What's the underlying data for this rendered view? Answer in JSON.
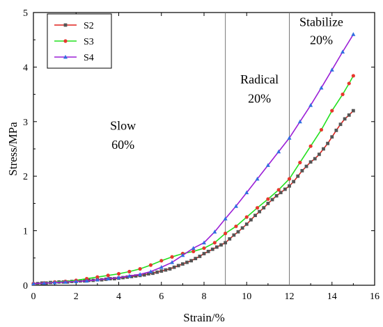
{
  "chart_data": {
    "type": "line",
    "title": "",
    "xlabel": "Strain/%",
    "ylabel": "Stress/MPa",
    "xlim": [
      0,
      16
    ],
    "ylim": [
      0,
      5
    ],
    "x_ticks": [
      0,
      2,
      4,
      6,
      8,
      10,
      12,
      14,
      16
    ],
    "y_ticks": [
      0,
      1,
      2,
      3,
      4,
      5
    ],
    "grid": false,
    "legend_position": "top-left",
    "vertical_lines": [
      9,
      12
    ],
    "annotations": [
      {
        "line1": "Slow",
        "line2": "60%",
        "x": 4.2,
        "y": 2.85,
        "y2": 2.5
      },
      {
        "line1": "Radical",
        "line2": "20%",
        "x": 10.6,
        "y": 3.7,
        "y2": 3.35
      },
      {
        "line1": "Stabilize",
        "line2": "20%",
        "x": 13.5,
        "y": 4.75,
        "y2": 4.42
      }
    ],
    "series": [
      {
        "name": "S2",
        "color": "#e0201b",
        "marker_color": "#555555",
        "marker": "square",
        "x": [
          0,
          0.2,
          0.4,
          0.6,
          0.8,
          1.0,
          1.2,
          1.4,
          1.6,
          1.8,
          2.0,
          2.2,
          2.4,
          2.6,
          2.8,
          3.0,
          3.2,
          3.4,
          3.6,
          3.8,
          4.0,
          4.2,
          4.4,
          4.6,
          4.8,
          5.0,
          5.2,
          5.4,
          5.6,
          5.8,
          6.0,
          6.2,
          6.4,
          6.6,
          6.8,
          7.0,
          7.2,
          7.4,
          7.6,
          7.8,
          8.0,
          8.2,
          8.4,
          8.6,
          8.8,
          9.0,
          9.2,
          9.4,
          9.6,
          9.8,
          10.0,
          10.2,
          10.4,
          10.6,
          10.8,
          11.0,
          11.2,
          11.4,
          11.6,
          11.8,
          12.0,
          12.2,
          12.4,
          12.6,
          12.8,
          13.0,
          13.2,
          13.4,
          13.6,
          13.8,
          14.0,
          14.2,
          14.4,
          14.6,
          14.8,
          15.0
        ],
        "y": [
          0.02,
          0.03,
          0.04,
          0.04,
          0.05,
          0.05,
          0.06,
          0.06,
          0.06,
          0.07,
          0.07,
          0.08,
          0.08,
          0.09,
          0.09,
          0.1,
          0.1,
          0.11,
          0.12,
          0.12,
          0.13,
          0.14,
          0.15,
          0.16,
          0.17,
          0.18,
          0.19,
          0.21,
          0.22,
          0.24,
          0.26,
          0.28,
          0.3,
          0.33,
          0.36,
          0.39,
          0.42,
          0.45,
          0.49,
          0.53,
          0.58,
          0.62,
          0.66,
          0.7,
          0.74,
          0.78,
          0.85,
          0.92,
          0.98,
          1.05,
          1.12,
          1.2,
          1.28,
          1.35,
          1.42,
          1.5,
          1.57,
          1.64,
          1.7,
          1.76,
          1.82,
          1.9,
          2.0,
          2.1,
          2.18,
          2.26,
          2.32,
          2.4,
          2.5,
          2.6,
          2.72,
          2.84,
          2.95,
          3.05,
          3.12,
          3.2
        ]
      },
      {
        "name": "S3",
        "color": "#22e01e",
        "marker_color": "#e8372e",
        "marker": "circle",
        "x": [
          0,
          0.5,
          1.0,
          1.5,
          2.0,
          2.5,
          3.0,
          3.5,
          4.0,
          4.5,
          5.0,
          5.5,
          6.0,
          6.5,
          7.0,
          7.5,
          8.0,
          8.5,
          9.0,
          9.5,
          10.0,
          10.5,
          11.0,
          11.5,
          12.0,
          12.5,
          13.0,
          13.5,
          14.0,
          14.5,
          14.8,
          15.0
        ],
        "y": [
          0.03,
          0.04,
          0.06,
          0.07,
          0.09,
          0.12,
          0.15,
          0.18,
          0.21,
          0.25,
          0.3,
          0.37,
          0.45,
          0.52,
          0.58,
          0.62,
          0.68,
          0.78,
          0.95,
          1.08,
          1.25,
          1.42,
          1.58,
          1.75,
          1.95,
          2.25,
          2.55,
          2.85,
          3.2,
          3.5,
          3.7,
          3.84
        ]
      },
      {
        "name": "S4",
        "color": "#9b1fd6",
        "marker_color": "#2f6fe0",
        "marker": "triangle",
        "x": [
          0,
          0.5,
          1.0,
          1.5,
          2.0,
          2.5,
          3.0,
          3.5,
          4.0,
          4.5,
          5.0,
          5.5,
          6.0,
          6.5,
          7.0,
          7.5,
          8.0,
          8.5,
          9.0,
          9.5,
          10.0,
          10.5,
          11.0,
          11.5,
          12.0,
          12.5,
          13.0,
          13.5,
          14.0,
          14.5,
          15.0
        ],
        "y": [
          0.03,
          0.04,
          0.05,
          0.06,
          0.07,
          0.08,
          0.1,
          0.12,
          0.14,
          0.17,
          0.2,
          0.25,
          0.33,
          0.42,
          0.55,
          0.68,
          0.78,
          0.98,
          1.22,
          1.45,
          1.7,
          1.95,
          2.2,
          2.45,
          2.7,
          3.0,
          3.3,
          3.62,
          3.95,
          4.28,
          4.6
        ]
      }
    ]
  }
}
